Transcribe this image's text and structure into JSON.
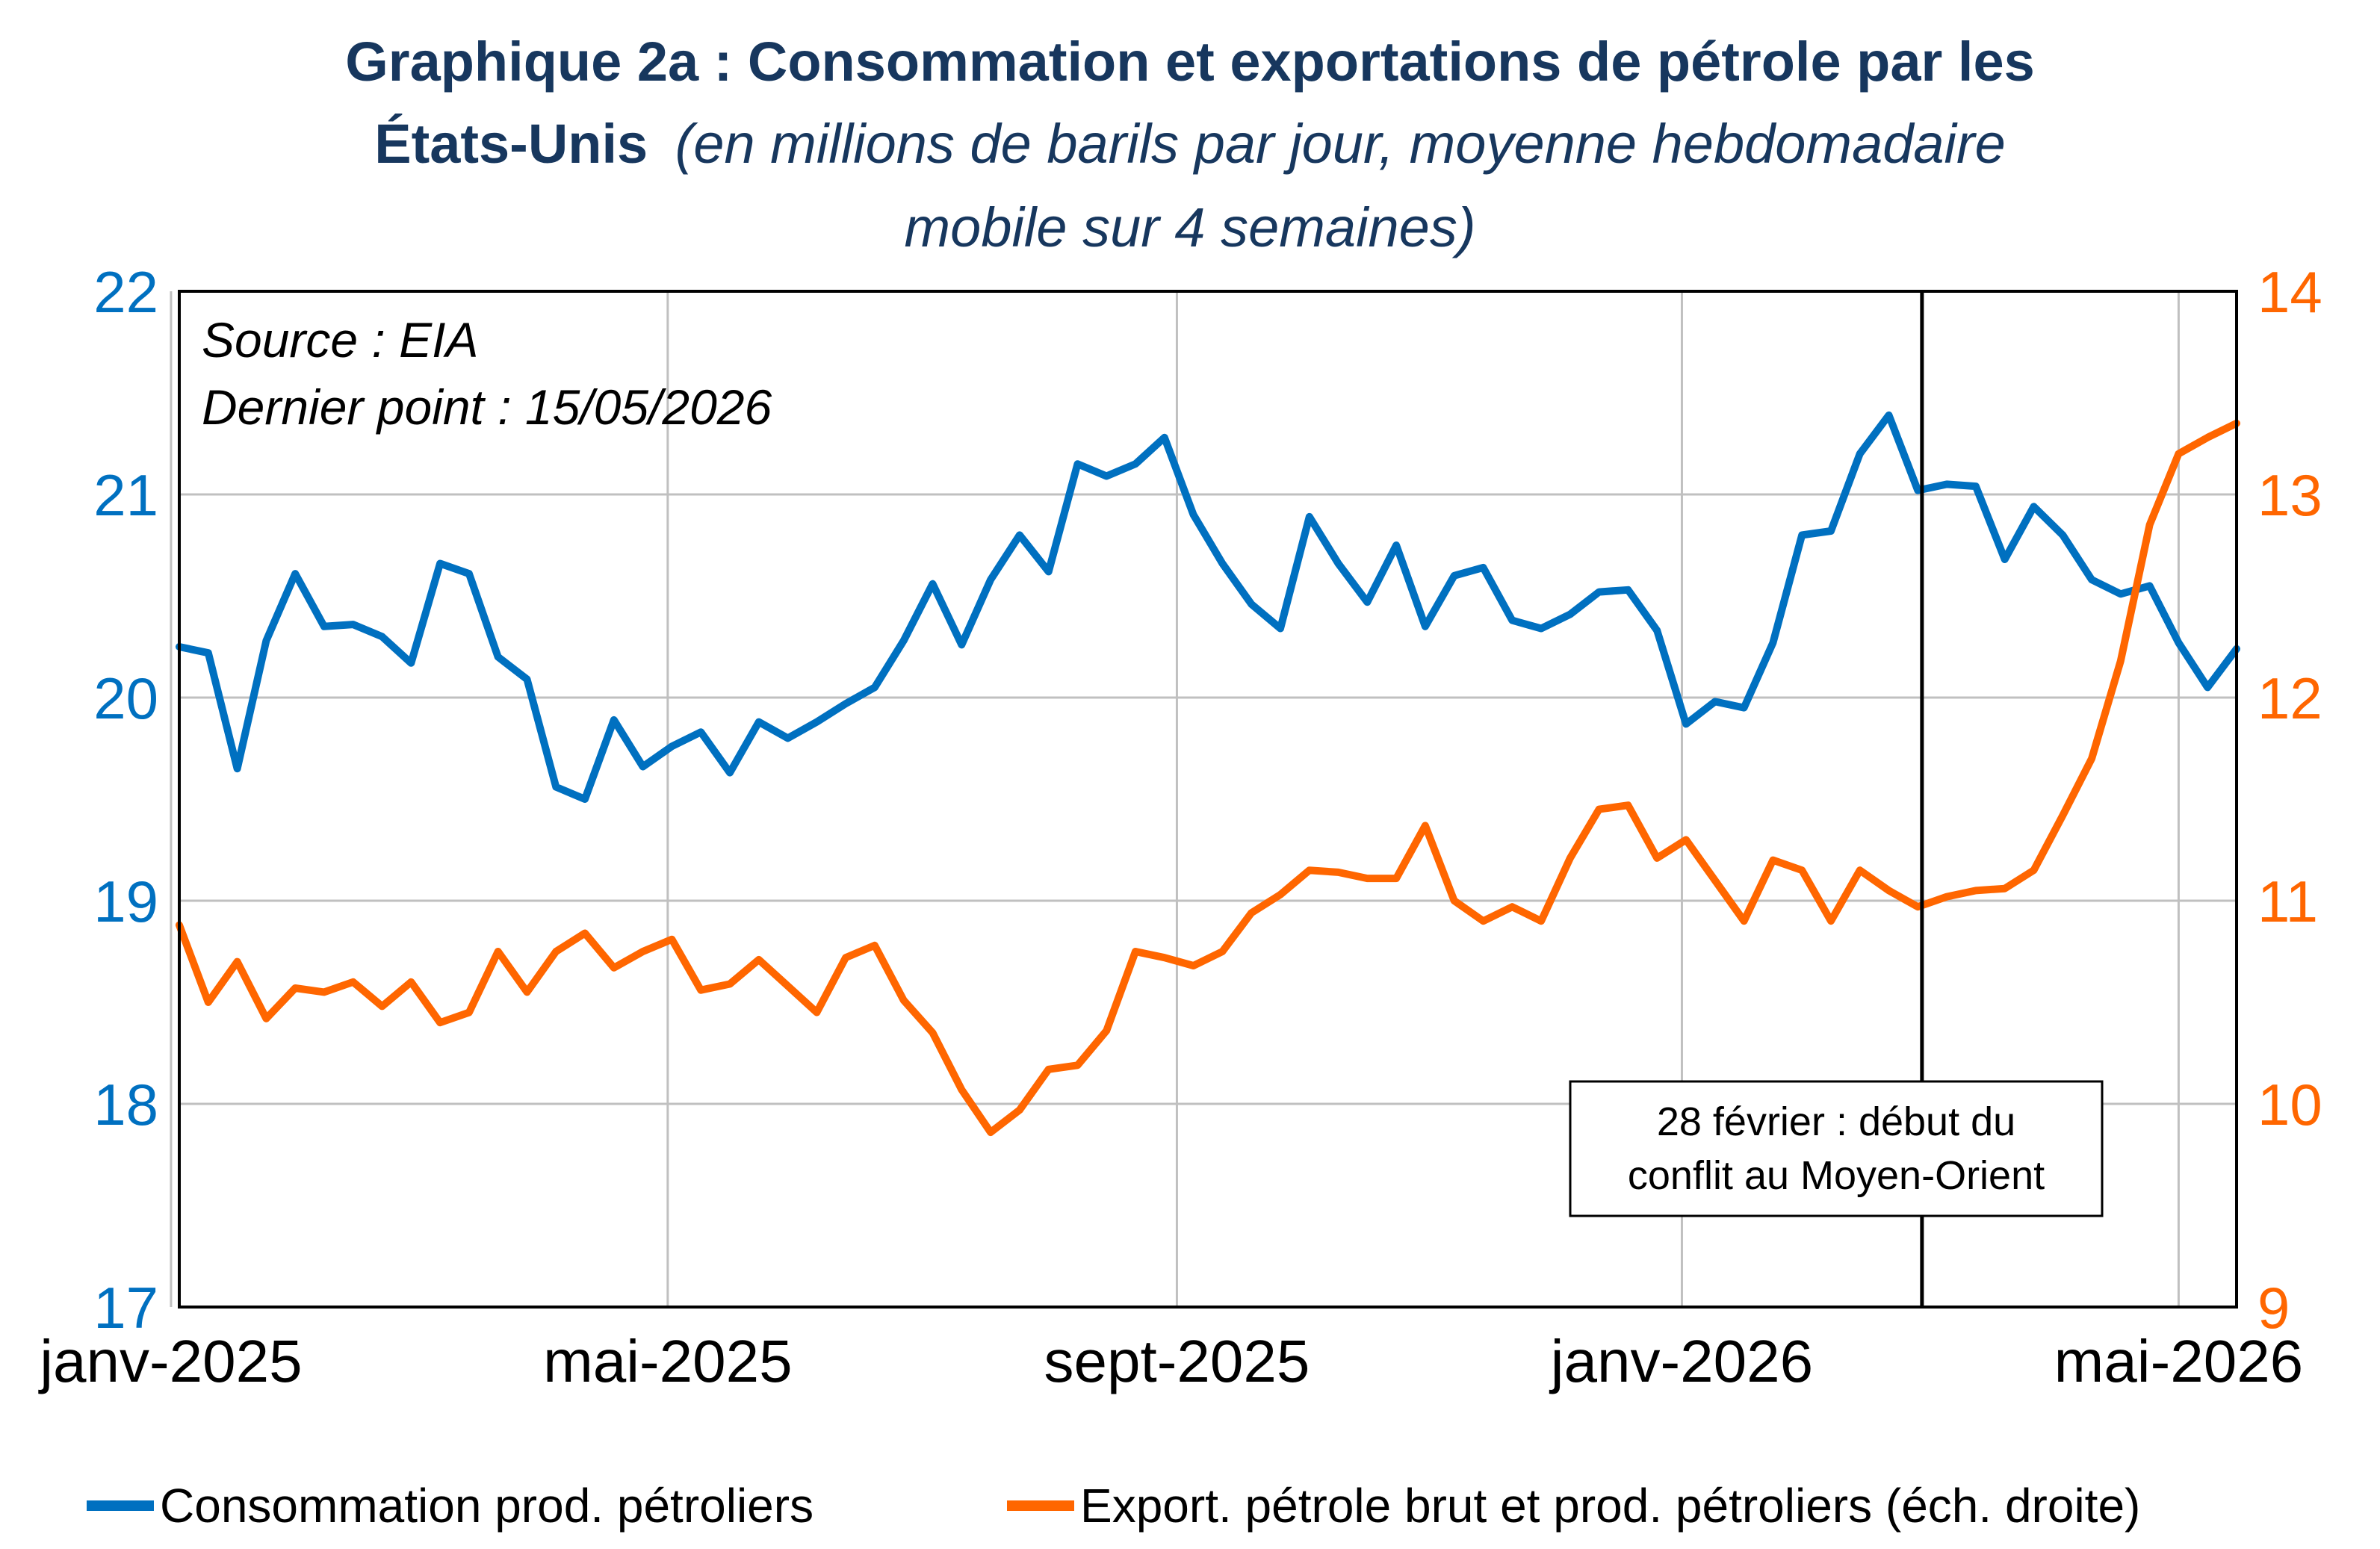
{
  "title": {
    "bold_line1": "Graphique 2a : Consommation et exportations de pétrole par les",
    "bold_line2": "États-Unis",
    "italic_line2": "(en millions de barils par jour, moyenne hebdomadaire",
    "italic_line3": "mobile sur 4 semaines)"
  },
  "notes": {
    "source": "Source : EIA",
    "last_point": "Dernier point : 15/05/2026"
  },
  "annotation": {
    "line1": "28 février : début du",
    "line2": "conflit au Moyen-Orient",
    "date": "2026-02-28"
  },
  "colors": {
    "consumption": "#0070c0",
    "exports": "#ff6600",
    "title": "#17375e",
    "grid": "#c0c0c0"
  },
  "chart_data": {
    "type": "line",
    "x_range": [
      "2025-01-03",
      "2026-05-15"
    ],
    "x_ticks": [
      {
        "label": "janv-2025",
        "date": "2025-01-01"
      },
      {
        "label": "mai-2025",
        "date": "2025-05-01"
      },
      {
        "label": "sept-2025",
        "date": "2025-09-01"
      },
      {
        "label": "janv-2026",
        "date": "2026-01-01"
      },
      {
        "label": "mai-2026",
        "date": "2026-05-01"
      }
    ],
    "y_left": {
      "min": 17,
      "max": 22,
      "ticks": [
        "17",
        "18",
        "19",
        "20",
        "21",
        "22"
      ]
    },
    "y_right": {
      "min": 9,
      "max": 14,
      "ticks": [
        "9",
        "10",
        "11",
        "12",
        "13",
        "14"
      ]
    },
    "grid": true,
    "legend_position": "bottom",
    "series": [
      {
        "name": "Consommation prod. pétroliers",
        "axis": "left",
        "start_date": "2025-01-03",
        "step_days": 7,
        "values": [
          20.25,
          20.22,
          19.65,
          20.28,
          20.61,
          20.35,
          20.36,
          20.3,
          20.17,
          20.66,
          20.61,
          20.2,
          20.09,
          19.56,
          19.5,
          19.89,
          19.66,
          19.76,
          19.83,
          19.63,
          19.88,
          19.8,
          19.88,
          19.97,
          20.05,
          20.28,
          20.56,
          20.26,
          20.58,
          20.8,
          20.62,
          21.15,
          21.09,
          21.15,
          21.28,
          20.9,
          20.66,
          20.46,
          20.34,
          20.89,
          20.66,
          20.47,
          20.75,
          20.35,
          20.6,
          20.64,
          20.38,
          20.34,
          20.41,
          20.52,
          20.53,
          20.33,
          19.87,
          19.98,
          19.95,
          20.27,
          20.8,
          20.82,
          21.2,
          21.39,
          21.02,
          21.05,
          21.04,
          20.68,
          20.94,
          20.8,
          20.58,
          20.51,
          20.55,
          20.27,
          20.05,
          20.24
        ]
      },
      {
        "name": "Export. pétrole brut et prod. pétroliers (éch. droite)",
        "axis": "right",
        "start_date": "2025-01-03",
        "step_days": 7,
        "values": [
          10.88,
          10.5,
          10.7,
          10.42,
          10.57,
          10.55,
          10.6,
          10.48,
          10.6,
          10.4,
          10.45,
          10.75,
          10.55,
          10.75,
          10.84,
          10.67,
          10.75,
          10.81,
          10.56,
          10.59,
          10.71,
          10.58,
          10.45,
          10.72,
          10.78,
          10.51,
          10.35,
          10.07,
          9.86,
          9.97,
          10.17,
          10.19,
          10.36,
          10.75,
          10.72,
          10.68,
          10.75,
          10.94,
          11.03,
          11.15,
          11.14,
          11.11,
          11.11,
          11.37,
          11.0,
          10.9,
          10.97,
          10.9,
          11.21,
          11.45,
          11.47,
          11.21,
          11.3,
          11.1,
          10.9,
          11.2,
          11.15,
          10.9,
          11.15,
          11.05,
          10.97,
          11.02,
          11.05,
          11.06,
          11.15,
          11.42,
          11.7,
          12.18,
          12.85,
          13.2,
          13.28,
          13.35
        ]
      }
    ]
  }
}
